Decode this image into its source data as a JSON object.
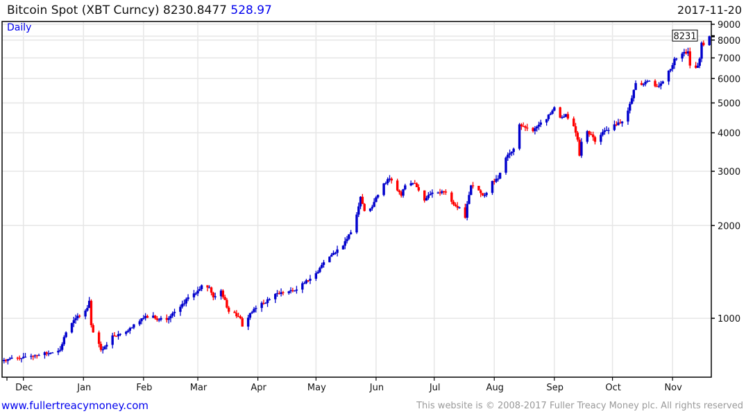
{
  "header": {
    "name": "Bitcoin Spot (XBT Curncy)",
    "last": "8230.8477",
    "change": "528.97",
    "date": "2017-11-20",
    "period": "Daily"
  },
  "footer": {
    "link": "www.fullertreacymoney.com",
    "copyright": "This website is © 2008-2017 Fuller Treacy Money plc. All rights reserved"
  },
  "colors": {
    "up": "#0000cc",
    "down": "#ff0000",
    "link": "#0000ee",
    "grid": "#e6e6e6"
  },
  "chart_data": {
    "type": "candlestick",
    "title": "Bitcoin Spot (XBT Curncy)",
    "frequency": "Daily (weekdays)",
    "y_scale": "log",
    "ylim": [
      644,
      9190
    ],
    "y_ticks": [
      1000,
      2000,
      3000,
      4000,
      5000,
      6000,
      7000,
      8000,
      9000
    ],
    "y_tick_labels": [
      "1000",
      "2000",
      "3000",
      "4000",
      "5000",
      "6000",
      "7000",
      "8000",
      "9000"
    ],
    "last_price_label": "8231",
    "x_range": [
      "2016-11-20",
      "2017-11-21"
    ],
    "x_ticks": [
      "2016-12-01",
      "2017-01-01",
      "2017-02-01",
      "2017-03-01",
      "2017-04-01",
      "2017-05-01",
      "2017-06-01",
      "2017-07-01",
      "2017-08-01",
      "2017-09-01",
      "2017-10-01",
      "2017-11-01"
    ],
    "x_tick_labels": [
      "Dec",
      "Jan",
      "Feb",
      "Mar",
      "Apr",
      "May",
      "Jun",
      "Jul",
      "Aug",
      "Sep",
      "Oct",
      "Nov"
    ],
    "close_anchors": [
      [
        "2016-11-21",
        733
      ],
      [
        "2016-12-01",
        750
      ],
      [
        "2016-12-15",
        772
      ],
      [
        "2016-12-20",
        790
      ],
      [
        "2016-12-23",
        900
      ],
      [
        "2016-12-28",
        1000
      ],
      [
        "2017-01-03",
        1080
      ],
      [
        "2017-01-04",
        1140
      ],
      [
        "2017-01-05",
        950
      ],
      [
        "2017-01-06",
        900
      ],
      [
        "2017-01-10",
        790
      ],
      [
        "2017-01-12",
        810
      ],
      [
        "2017-01-16",
        880
      ],
      [
        "2017-01-20",
        890
      ],
      [
        "2017-01-25",
        930
      ],
      [
        "2017-01-31",
        1000
      ],
      [
        "2017-02-06",
        1020
      ],
      [
        "2017-02-09",
        990
      ],
      [
        "2017-02-14",
        1000
      ],
      [
        "2017-02-20",
        1090
      ],
      [
        "2017-02-24",
        1170
      ],
      [
        "2017-03-01",
        1230
      ],
      [
        "2017-03-03",
        1280
      ],
      [
        "2017-03-07",
        1260
      ],
      [
        "2017-03-09",
        1170
      ],
      [
        "2017-03-13",
        1230
      ],
      [
        "2017-03-17",
        1050
      ],
      [
        "2017-03-20",
        1040
      ],
      [
        "2017-03-23",
        1000
      ],
      [
        "2017-03-24",
        940
      ],
      [
        "2017-03-28",
        1040
      ],
      [
        "2017-03-31",
        1080
      ],
      [
        "2017-04-04",
        1120
      ],
      [
        "2017-04-10",
        1200
      ],
      [
        "2017-04-20",
        1230
      ],
      [
        "2017-04-25",
        1300
      ],
      [
        "2017-05-01",
        1400
      ],
      [
        "2017-05-05",
        1520
      ],
      [
        "2017-05-10",
        1630
      ],
      [
        "2017-05-15",
        1720
      ],
      [
        "2017-05-17",
        1810
      ],
      [
        "2017-05-19",
        1900
      ],
      [
        "2017-05-22",
        2170
      ],
      [
        "2017-05-24",
        2480
      ],
      [
        "2017-05-25",
        2350
      ],
      [
        "2017-05-26",
        2230
      ],
      [
        "2017-05-30",
        2300
      ],
      [
        "2017-06-01",
        2470
      ],
      [
        "2017-06-05",
        2740
      ],
      [
        "2017-06-08",
        2840
      ],
      [
        "2017-06-09",
        2800
      ],
      [
        "2017-06-12",
        2600
      ],
      [
        "2017-06-14",
        2500
      ],
      [
        "2017-06-16",
        2700
      ],
      [
        "2017-06-21",
        2740
      ],
      [
        "2017-06-26",
        2410
      ],
      [
        "2017-06-28",
        2510
      ],
      [
        "2017-07-03",
        2560
      ],
      [
        "2017-07-07",
        2560
      ],
      [
        "2017-07-10",
        2390
      ],
      [
        "2017-07-14",
        2290
      ],
      [
        "2017-07-17",
        2120
      ],
      [
        "2017-07-18",
        2350
      ],
      [
        "2017-07-20",
        2700
      ],
      [
        "2017-07-24",
        2600
      ],
      [
        "2017-07-27",
        2510
      ],
      [
        "2017-07-31",
        2790
      ],
      [
        "2017-08-03",
        2840
      ],
      [
        "2017-08-07",
        3320
      ],
      [
        "2017-08-09",
        3430
      ],
      [
        "2017-08-11",
        3550
      ],
      [
        "2017-08-14",
        4260
      ],
      [
        "2017-08-16",
        4200
      ],
      [
        "2017-08-18",
        4150
      ],
      [
        "2017-08-21",
        4050
      ],
      [
        "2017-08-24",
        4250
      ],
      [
        "2017-08-28",
        4430
      ],
      [
        "2017-08-31",
        4720
      ],
      [
        "2017-09-01",
        4840
      ],
      [
        "2017-09-04",
        4480
      ],
      [
        "2017-09-07",
        4600
      ],
      [
        "2017-09-11",
        4200
      ],
      [
        "2017-09-13",
        3800
      ],
      [
        "2017-09-14",
        3370
      ],
      [
        "2017-09-15",
        3740
      ],
      [
        "2017-09-18",
        4050
      ],
      [
        "2017-09-20",
        3950
      ],
      [
        "2017-09-22",
        3740
      ],
      [
        "2017-09-25",
        3940
      ],
      [
        "2017-09-28",
        4080
      ],
      [
        "2017-10-02",
        4260
      ],
      [
        "2017-10-06",
        4350
      ],
      [
        "2017-10-09",
        4720
      ],
      [
        "2017-10-12",
        5510
      ],
      [
        "2017-10-13",
        5800
      ],
      [
        "2017-10-17",
        5750
      ],
      [
        "2017-10-20",
        5900
      ],
      [
        "2017-10-24",
        5650
      ],
      [
        "2017-10-27",
        5870
      ],
      [
        "2017-10-31",
        6440
      ],
      [
        "2017-11-02",
        6960
      ],
      [
        "2017-11-06",
        7230
      ],
      [
        "2017-11-09",
        7350
      ],
      [
        "2017-11-10",
        6610
      ],
      [
        "2017-11-13",
        6500
      ],
      [
        "2017-11-14",
        6600
      ],
      [
        "2017-11-15",
        6960
      ],
      [
        "2017-11-16",
        7840
      ],
      [
        "2017-11-17",
        7700
      ],
      [
        "2017-11-20",
        8230.85
      ]
    ]
  }
}
